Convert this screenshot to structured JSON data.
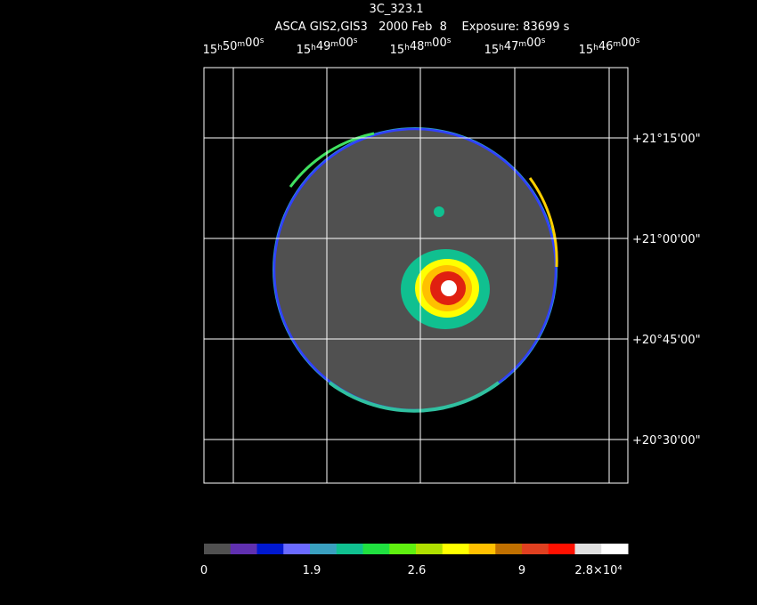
{
  "header": {
    "title": "3C_323.1",
    "subtitle": "ASCA GIS2,GIS3   2000 Feb  8    Exposure: 83699 s"
  },
  "ra_labels": [
    "15h50m00s",
    "15h49m00s",
    "15h48m00s",
    "15h47m00s",
    "15h46m00s"
  ],
  "dec_labels": [
    "+21°15'00\"",
    "+21°00'00\"",
    "+20°45'00\"",
    "+20°30'00\""
  ],
  "colorbar_labels": [
    "0",
    "1.9",
    "2.6",
    "9",
    "2.8×10⁴"
  ]
}
